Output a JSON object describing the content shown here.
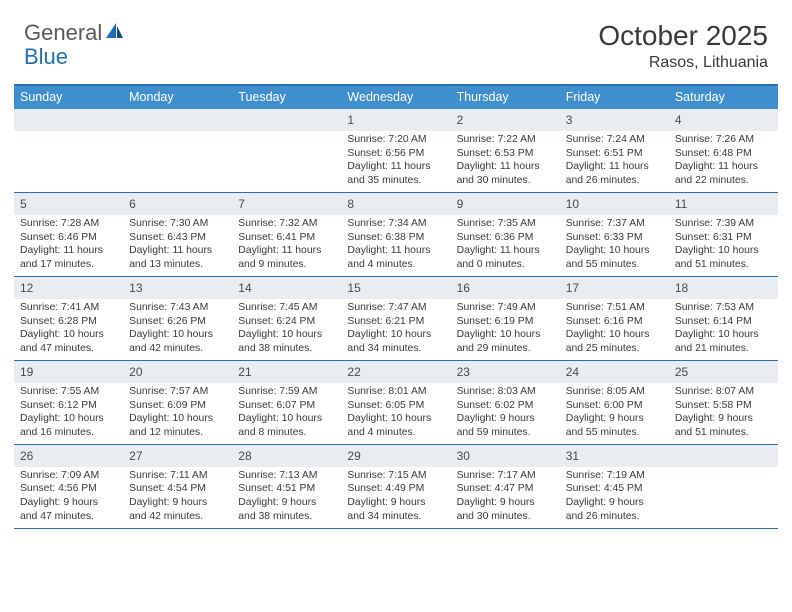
{
  "logo": {
    "text1": "General",
    "text2": "Blue"
  },
  "title": "October 2025",
  "location": "Rasos, Lithuania",
  "dow": [
    "Sunday",
    "Monday",
    "Tuesday",
    "Wednesday",
    "Thursday",
    "Friday",
    "Saturday"
  ],
  "colors": {
    "header_bar": "#3f8fce",
    "border": "#2a6fb0",
    "daynum_bg": "#e9edf1",
    "text": "#3a3a3a",
    "logo_gray": "#5a5a5a",
    "logo_blue": "#1f6fb2"
  },
  "weeks": [
    [
      {
        "n": "",
        "sr": "",
        "ss": "",
        "dl": ""
      },
      {
        "n": "",
        "sr": "",
        "ss": "",
        "dl": ""
      },
      {
        "n": "",
        "sr": "",
        "ss": "",
        "dl": ""
      },
      {
        "n": "1",
        "sr": "Sunrise: 7:20 AM",
        "ss": "Sunset: 6:56 PM",
        "dl": "Daylight: 11 hours and 35 minutes."
      },
      {
        "n": "2",
        "sr": "Sunrise: 7:22 AM",
        "ss": "Sunset: 6:53 PM",
        "dl": "Daylight: 11 hours and 30 minutes."
      },
      {
        "n": "3",
        "sr": "Sunrise: 7:24 AM",
        "ss": "Sunset: 6:51 PM",
        "dl": "Daylight: 11 hours and 26 minutes."
      },
      {
        "n": "4",
        "sr": "Sunrise: 7:26 AM",
        "ss": "Sunset: 6:48 PM",
        "dl": "Daylight: 11 hours and 22 minutes."
      }
    ],
    [
      {
        "n": "5",
        "sr": "Sunrise: 7:28 AM",
        "ss": "Sunset: 6:46 PM",
        "dl": "Daylight: 11 hours and 17 minutes."
      },
      {
        "n": "6",
        "sr": "Sunrise: 7:30 AM",
        "ss": "Sunset: 6:43 PM",
        "dl": "Daylight: 11 hours and 13 minutes."
      },
      {
        "n": "7",
        "sr": "Sunrise: 7:32 AM",
        "ss": "Sunset: 6:41 PM",
        "dl": "Daylight: 11 hours and 9 minutes."
      },
      {
        "n": "8",
        "sr": "Sunrise: 7:34 AM",
        "ss": "Sunset: 6:38 PM",
        "dl": "Daylight: 11 hours and 4 minutes."
      },
      {
        "n": "9",
        "sr": "Sunrise: 7:35 AM",
        "ss": "Sunset: 6:36 PM",
        "dl": "Daylight: 11 hours and 0 minutes."
      },
      {
        "n": "10",
        "sr": "Sunrise: 7:37 AM",
        "ss": "Sunset: 6:33 PM",
        "dl": "Daylight: 10 hours and 55 minutes."
      },
      {
        "n": "11",
        "sr": "Sunrise: 7:39 AM",
        "ss": "Sunset: 6:31 PM",
        "dl": "Daylight: 10 hours and 51 minutes."
      }
    ],
    [
      {
        "n": "12",
        "sr": "Sunrise: 7:41 AM",
        "ss": "Sunset: 6:28 PM",
        "dl": "Daylight: 10 hours and 47 minutes."
      },
      {
        "n": "13",
        "sr": "Sunrise: 7:43 AM",
        "ss": "Sunset: 6:26 PM",
        "dl": "Daylight: 10 hours and 42 minutes."
      },
      {
        "n": "14",
        "sr": "Sunrise: 7:45 AM",
        "ss": "Sunset: 6:24 PM",
        "dl": "Daylight: 10 hours and 38 minutes."
      },
      {
        "n": "15",
        "sr": "Sunrise: 7:47 AM",
        "ss": "Sunset: 6:21 PM",
        "dl": "Daylight: 10 hours and 34 minutes."
      },
      {
        "n": "16",
        "sr": "Sunrise: 7:49 AM",
        "ss": "Sunset: 6:19 PM",
        "dl": "Daylight: 10 hours and 29 minutes."
      },
      {
        "n": "17",
        "sr": "Sunrise: 7:51 AM",
        "ss": "Sunset: 6:16 PM",
        "dl": "Daylight: 10 hours and 25 minutes."
      },
      {
        "n": "18",
        "sr": "Sunrise: 7:53 AM",
        "ss": "Sunset: 6:14 PM",
        "dl": "Daylight: 10 hours and 21 minutes."
      }
    ],
    [
      {
        "n": "19",
        "sr": "Sunrise: 7:55 AM",
        "ss": "Sunset: 6:12 PM",
        "dl": "Daylight: 10 hours and 16 minutes."
      },
      {
        "n": "20",
        "sr": "Sunrise: 7:57 AM",
        "ss": "Sunset: 6:09 PM",
        "dl": "Daylight: 10 hours and 12 minutes."
      },
      {
        "n": "21",
        "sr": "Sunrise: 7:59 AM",
        "ss": "Sunset: 6:07 PM",
        "dl": "Daylight: 10 hours and 8 minutes."
      },
      {
        "n": "22",
        "sr": "Sunrise: 8:01 AM",
        "ss": "Sunset: 6:05 PM",
        "dl": "Daylight: 10 hours and 4 minutes."
      },
      {
        "n": "23",
        "sr": "Sunrise: 8:03 AM",
        "ss": "Sunset: 6:02 PM",
        "dl": "Daylight: 9 hours and 59 minutes."
      },
      {
        "n": "24",
        "sr": "Sunrise: 8:05 AM",
        "ss": "Sunset: 6:00 PM",
        "dl": "Daylight: 9 hours and 55 minutes."
      },
      {
        "n": "25",
        "sr": "Sunrise: 8:07 AM",
        "ss": "Sunset: 5:58 PM",
        "dl": "Daylight: 9 hours and 51 minutes."
      }
    ],
    [
      {
        "n": "26",
        "sr": "Sunrise: 7:09 AM",
        "ss": "Sunset: 4:56 PM",
        "dl": "Daylight: 9 hours and 47 minutes."
      },
      {
        "n": "27",
        "sr": "Sunrise: 7:11 AM",
        "ss": "Sunset: 4:54 PM",
        "dl": "Daylight: 9 hours and 42 minutes."
      },
      {
        "n": "28",
        "sr": "Sunrise: 7:13 AM",
        "ss": "Sunset: 4:51 PM",
        "dl": "Daylight: 9 hours and 38 minutes."
      },
      {
        "n": "29",
        "sr": "Sunrise: 7:15 AM",
        "ss": "Sunset: 4:49 PM",
        "dl": "Daylight: 9 hours and 34 minutes."
      },
      {
        "n": "30",
        "sr": "Sunrise: 7:17 AM",
        "ss": "Sunset: 4:47 PM",
        "dl": "Daylight: 9 hours and 30 minutes."
      },
      {
        "n": "31",
        "sr": "Sunrise: 7:19 AM",
        "ss": "Sunset: 4:45 PM",
        "dl": "Daylight: 9 hours and 26 minutes."
      },
      {
        "n": "",
        "sr": "",
        "ss": "",
        "dl": ""
      }
    ]
  ]
}
